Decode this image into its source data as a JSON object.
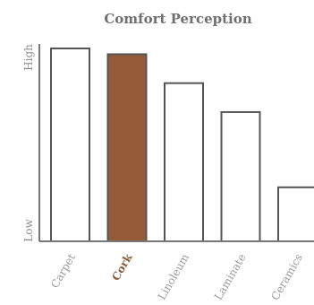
{
  "chart_data": {
    "type": "bar",
    "title": "Comfort Perception",
    "categories": [
      "Carpet",
      "Cork",
      "Linoleum",
      "Laminate",
      "Ceramics"
    ],
    "values": [
      100,
      97,
      82,
      67,
      28
    ],
    "highlight_index": 1,
    "ylim": [
      0,
      100
    ],
    "y_tick_labels": {
      "low": "Low",
      "high": "High"
    },
    "grid": false,
    "colors": {
      "bar_fill": "#ffffff",
      "bar_stroke": "#555555",
      "highlight_fill": "#935b38",
      "highlight_text": "#8b5a3c",
      "axis": "#777777"
    }
  }
}
